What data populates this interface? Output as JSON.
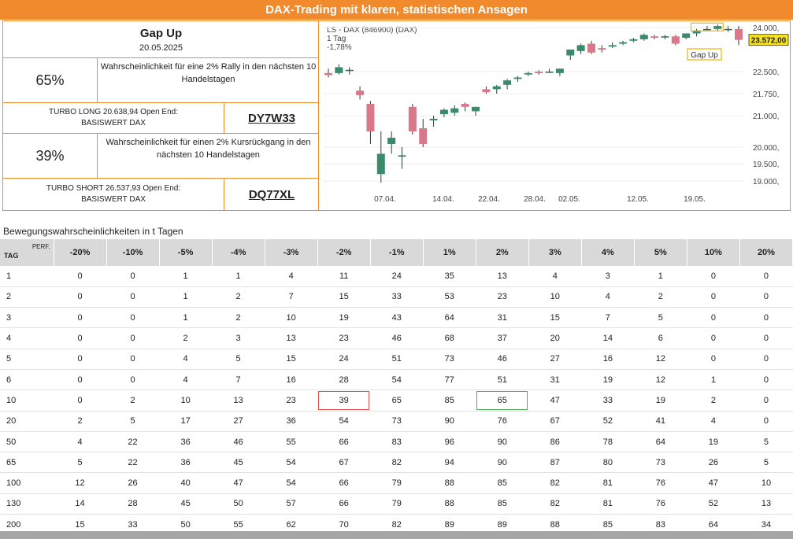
{
  "banner": {
    "title": "DAX-Trading mit klaren, statistischen Ansagen"
  },
  "signal": {
    "title": "Gap Up",
    "date": "20.05.2025",
    "rally_pct": "65%",
    "rally_text": "Wahrscheinlichkeit für eine 2% Rally in den nächsten 10 Handelstagen",
    "long_label": "TURBO LONG 20.638,94 Open End: BASISWERT DAX",
    "long_wkn": "DY7W33",
    "decline_pct": "39%",
    "decline_text": "Wahrscheinlichkeit für einen 2% Kursrückgang in den nächsten 10 Handelstagen",
    "short_label": "TURBO SHORT 26.537,93 Open End: BASISWERT DAX",
    "short_wkn": "DQ77XL"
  },
  "chart": {
    "instrument": "LS - DAX (846900) (DAX)",
    "interval": "1 Tag",
    "change": "-1,78%",
    "last_price": "23.572,00",
    "annotation": "Gap Up",
    "up_color": "#3a8a6b",
    "down_color": "#d9788a",
    "y_ticks": [
      "24.000,",
      "22.500,",
      "21.750,",
      "21.000,",
      "20.000,",
      "19.500,",
      "19.000,"
    ],
    "x_ticks": [
      "07.04.",
      "14.04.",
      "22.04.",
      "28.04.",
      "02.05.",
      "12.05.",
      "19.05."
    ]
  },
  "chart_data": {
    "type": "candlestick",
    "y_ticks": [
      24000,
      22500,
      21750,
      21000,
      20000,
      19500,
      19000
    ],
    "candles": [
      {
        "o": 22450,
        "h": 22600,
        "l": 22300,
        "c": 22380
      },
      {
        "o": 22450,
        "h": 22750,
        "l": 22400,
        "c": 22650
      },
      {
        "o": 22560,
        "h": 22650,
        "l": 22400,
        "c": 22560
      },
      {
        "o": 21850,
        "h": 22000,
        "l": 21550,
        "c": 21700
      },
      {
        "o": 21400,
        "h": 21500,
        "l": 20100,
        "c": 20500
      },
      {
        "o": 19200,
        "h": 20500,
        "l": 18950,
        "c": 19800
      },
      {
        "o": 20100,
        "h": 20500,
        "l": 19800,
        "c": 20300
      },
      {
        "o": 19750,
        "h": 20000,
        "l": 19350,
        "c": 19750
      },
      {
        "o": 21300,
        "h": 21400,
        "l": 20400,
        "c": 20500
      },
      {
        "o": 20600,
        "h": 20900,
        "l": 20000,
        "c": 20100
      },
      {
        "o": 20850,
        "h": 21000,
        "l": 20650,
        "c": 20900
      },
      {
        "o": 21050,
        "h": 21250,
        "l": 20950,
        "c": 21200
      },
      {
        "o": 21100,
        "h": 21350,
        "l": 21000,
        "c": 21250
      },
      {
        "o": 21400,
        "h": 21450,
        "l": 21150,
        "c": 21300
      },
      {
        "o": 21150,
        "h": 21300,
        "l": 21000,
        "c": 21300
      },
      {
        "o": 21900,
        "h": 22000,
        "l": 21750,
        "c": 21800
      },
      {
        "o": 21900,
        "h": 22050,
        "l": 21750,
        "c": 22000
      },
      {
        "o": 22050,
        "h": 22250,
        "l": 21900,
        "c": 22200
      },
      {
        "o": 22250,
        "h": 22350,
        "l": 22150,
        "c": 22300
      },
      {
        "o": 22400,
        "h": 22500,
        "l": 22350,
        "c": 22450
      },
      {
        "o": 22500,
        "h": 22550,
        "l": 22400,
        "c": 22450
      },
      {
        "o": 22500,
        "h": 22600,
        "l": 22450,
        "c": 22500
      },
      {
        "o": 22450,
        "h": 22600,
        "l": 22350,
        "c": 22600
      },
      {
        "o": 23050,
        "h": 23200,
        "l": 22900,
        "c": 23250
      },
      {
        "o": 23200,
        "h": 23450,
        "l": 23100,
        "c": 23400
      },
      {
        "o": 23450,
        "h": 23550,
        "l": 23100,
        "c": 23150
      },
      {
        "o": 23300,
        "h": 23400,
        "l": 23150,
        "c": 23250
      },
      {
        "o": 23350,
        "h": 23500,
        "l": 23300,
        "c": 23400
      },
      {
        "o": 23450,
        "h": 23550,
        "l": 23400,
        "c": 23500
      },
      {
        "o": 23550,
        "h": 23650,
        "l": 23500,
        "c": 23600
      },
      {
        "o": 23600,
        "h": 23800,
        "l": 23550,
        "c": 23750
      },
      {
        "o": 23700,
        "h": 23750,
        "l": 23600,
        "c": 23650
      },
      {
        "o": 23700,
        "h": 23750,
        "l": 23600,
        "c": 23700
      },
      {
        "o": 23700,
        "h": 23750,
        "l": 23400,
        "c": 23450
      },
      {
        "o": 23650,
        "h": 23800,
        "l": 23600,
        "c": 23800
      },
      {
        "o": 23800,
        "h": 23950,
        "l": 23700,
        "c": 23900
      },
      {
        "o": 23950,
        "h": 24050,
        "l": 23900,
        "c": 23950
      },
      {
        "o": 23950,
        "h": 24100,
        "l": 23900,
        "c": 24050
      },
      {
        "o": 23950,
        "h": 24050,
        "l": 23850,
        "c": 23950
      },
      {
        "o": 23950,
        "h": 24050,
        "l": 23400,
        "c": 23580
      }
    ]
  },
  "table": {
    "title": "Bewegungswahrscheinlichkeiten in t Tagen",
    "tag_header": "TAG",
    "perf_header": "PERF.",
    "columns": [
      "-20%",
      "-10%",
      "-5%",
      "-4%",
      "-3%",
      "-2%",
      "-1%",
      "1%",
      "2%",
      "3%",
      "4%",
      "5%",
      "10%",
      "20%"
    ],
    "rows": [
      {
        "tag": "1",
        "values": [
          "0",
          "0",
          "1",
          "1",
          "4",
          "11",
          "24",
          "35",
          "13",
          "4",
          "3",
          "1",
          "0",
          "0"
        ]
      },
      {
        "tag": "2",
        "values": [
          "0",
          "0",
          "1",
          "2",
          "7",
          "15",
          "33",
          "53",
          "23",
          "10",
          "4",
          "2",
          "0",
          "0"
        ]
      },
      {
        "tag": "3",
        "values": [
          "0",
          "0",
          "1",
          "2",
          "10",
          "19",
          "43",
          "64",
          "31",
          "15",
          "7",
          "5",
          "0",
          "0"
        ]
      },
      {
        "tag": "4",
        "values": [
          "0",
          "0",
          "2",
          "3",
          "13",
          "23",
          "46",
          "68",
          "37",
          "20",
          "14",
          "6",
          "0",
          "0"
        ]
      },
      {
        "tag": "5",
        "values": [
          "0",
          "0",
          "4",
          "5",
          "15",
          "24",
          "51",
          "73",
          "46",
          "27",
          "16",
          "12",
          "0",
          "0"
        ]
      },
      {
        "tag": "6",
        "values": [
          "0",
          "0",
          "4",
          "7",
          "16",
          "28",
          "54",
          "77",
          "51",
          "31",
          "19",
          "12",
          "1",
          "0"
        ]
      },
      {
        "tag": "10",
        "values": [
          "0",
          "2",
          "10",
          "13",
          "23",
          "39",
          "65",
          "85",
          "65",
          "47",
          "33",
          "19",
          "2",
          "0"
        ]
      },
      {
        "tag": "20",
        "values": [
          "2",
          "5",
          "17",
          "27",
          "36",
          "54",
          "73",
          "90",
          "76",
          "67",
          "52",
          "41",
          "4",
          "0"
        ]
      },
      {
        "tag": "50",
        "values": [
          "4",
          "22",
          "36",
          "46",
          "55",
          "66",
          "83",
          "96",
          "90",
          "86",
          "78",
          "64",
          "19",
          "5"
        ]
      },
      {
        "tag": "65",
        "values": [
          "5",
          "22",
          "36",
          "45",
          "54",
          "67",
          "82",
          "94",
          "90",
          "87",
          "80",
          "73",
          "26",
          "5"
        ]
      },
      {
        "tag": "100",
        "values": [
          "12",
          "26",
          "40",
          "47",
          "54",
          "66",
          "79",
          "88",
          "85",
          "82",
          "81",
          "76",
          "47",
          "10"
        ]
      },
      {
        "tag": "130",
        "values": [
          "14",
          "28",
          "45",
          "50",
          "57",
          "66",
          "79",
          "88",
          "85",
          "82",
          "81",
          "76",
          "52",
          "13"
        ]
      },
      {
        "tag": "200",
        "values": [
          "15",
          "33",
          "50",
          "55",
          "62",
          "70",
          "82",
          "89",
          "89",
          "88",
          "85",
          "83",
          "64",
          "34"
        ]
      }
    ],
    "highlight_red": {
      "row": 6,
      "col": 5
    },
    "highlight_green": {
      "row": 6,
      "col": 8
    }
  }
}
